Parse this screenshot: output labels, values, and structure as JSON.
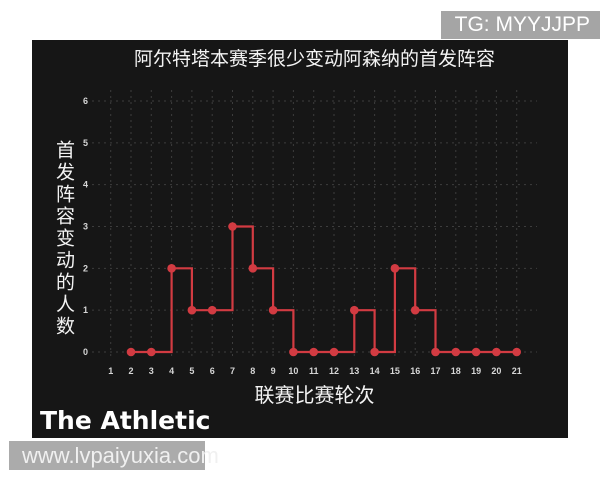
{
  "overlays": {
    "badge_text": "TG: MYYJJPP",
    "watermark_text": "www.lvpaiyuxia.com"
  },
  "footer": {
    "logo_text": "The Athletic"
  },
  "chart_data": {
    "type": "line",
    "subtype": "step-post",
    "title": "阿尔特塔本赛季很少变动阿森纳的首发阵容",
    "xlabel": "联赛比赛轮次",
    "ylabel": "首发阵容变动的人数",
    "x": [
      2,
      3,
      4,
      5,
      6,
      7,
      8,
      9,
      10,
      11,
      12,
      13,
      14,
      15,
      16,
      17,
      18,
      19,
      20,
      21
    ],
    "values": [
      0,
      0,
      2,
      1,
      1,
      3,
      2,
      1,
      0,
      0,
      0,
      1,
      0,
      2,
      1,
      0,
      0,
      0,
      0,
      0
    ],
    "x_ticks": [
      1,
      2,
      3,
      4,
      5,
      6,
      7,
      8,
      9,
      10,
      11,
      12,
      13,
      14,
      15,
      16,
      17,
      18,
      19,
      20,
      21
    ],
    "y_ticks": [
      0,
      1,
      2,
      3,
      4,
      5,
      6
    ],
    "xlim": [
      1,
      21
    ],
    "ylim": [
      0,
      6
    ],
    "grid": true,
    "grid_style": "dashed",
    "legend": "none",
    "colors": {
      "line": "#d23b42",
      "marker": "#d23b42",
      "panel_background": "#161616",
      "grid": "#3d3d3d",
      "tick_text": "#d6d6d6",
      "label_text": "#f3f3f3",
      "badge_background": "#a5a5a5",
      "watermark_background": "#ababab"
    }
  }
}
